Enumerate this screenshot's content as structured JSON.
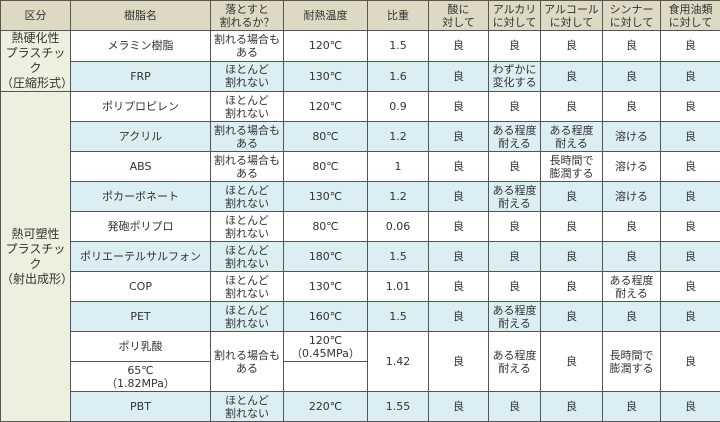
{
  "headers": [
    "区分",
    "樹脂名",
    "落とすと\n割れるか？",
    "耐熱温度",
    "比重",
    "酸に\n対して",
    "アルカリ\nに対して",
    "アルコール\nに対して",
    "シンナー\nに対して",
    "食用油類\nに対して"
  ],
  "categories": [
    "熱硬化性\nプラスチック\n（圧縮形式）",
    "熱可塑性\nプラスチック\n（射出成形）"
  ],
  "rows": [
    {
      "name": "メラミン樹脂",
      "drop": "割れる場合も\nある",
      "heat": "120℃",
      "sg": "1.5",
      "acid": "良",
      "alkali": "良",
      "alcohol": "良",
      "thinner": "良",
      "oil": "良"
    },
    {
      "name": "FRP",
      "drop": "ほとんど\n割れない",
      "heat": "130℃",
      "sg": "1.6",
      "acid": "良",
      "alkali": "わずかに\n変化する",
      "alcohol": "良",
      "thinner": "良",
      "oil": "良"
    },
    {
      "name": "ポリプロピレン",
      "drop": "ほとんど\n割れない",
      "heat": "120℃",
      "sg": "0.9",
      "acid": "良",
      "alkali": "良",
      "alcohol": "良",
      "thinner": "良",
      "oil": "良"
    },
    {
      "name": "アクリル",
      "drop": "割れる場合も\nある",
      "heat": "80℃",
      "sg": "1.2",
      "acid": "良",
      "alkali": "ある程度\n耐える",
      "alcohol": "ある程度\n耐える",
      "thinner": "溶ける",
      "oil": "良"
    },
    {
      "name": "ABS",
      "drop": "割れる場合も\nある",
      "heat": "80℃",
      "sg": "1",
      "acid": "良",
      "alkali": "良",
      "alcohol": "長時間で\n膨潤する",
      "thinner": "溶ける",
      "oil": "良"
    },
    {
      "name": "ポカーボネート",
      "drop": "ほとんど\n割れない",
      "heat": "130℃",
      "sg": "1.2",
      "acid": "良",
      "alkali": "ある程度\n耐える",
      "alcohol": "良",
      "thinner": "溶ける",
      "oil": "良"
    },
    {
      "name": "発砲ポリプロ",
      "drop": "ほとんど\n割れない",
      "heat": "80℃",
      "sg": "0.06",
      "acid": "良",
      "alkali": "良",
      "alcohol": "良",
      "thinner": "良",
      "oil": "良"
    },
    {
      "name": "ポリエーテルサルフォン",
      "drop": "ほとんど\n割れない",
      "heat": "180℃",
      "sg": "1.5",
      "acid": "良",
      "alkali": "良",
      "alcohol": "良",
      "thinner": "良",
      "oil": "良"
    },
    {
      "name": "COP",
      "drop": "ほとんど\n割れない",
      "heat": "130℃",
      "sg": "1.01",
      "acid": "良",
      "alkali": "良",
      "alcohol": "良",
      "thinner": "ある程度\n耐える",
      "oil": "良"
    },
    {
      "name": "PET",
      "drop": "ほとんど\n割れない",
      "heat": "160℃",
      "sg": "1.5",
      "acid": "良",
      "alkali": "ある程度\n耐える",
      "alcohol": "良",
      "thinner": "良",
      "oil": "良"
    },
    {
      "name": "ポリ乳酸",
      "drop": "割れる場合も\nある",
      "heat": "120℃\n（0.45MPa）",
      "heat2": "65℃\n（1.82MPa）",
      "sg": "1.42",
      "acid": "良",
      "alkali": "ある程度\n耐える",
      "alcohol": "良",
      "thinner": "長時間で\n膨潤する",
      "oil": "良"
    },
    {
      "name": "PBT",
      "drop": "ほとんど\n割れない",
      "heat": "220℃",
      "sg": "1.55",
      "acid": "良",
      "alkali": "良",
      "alcohol": "良",
      "thinner": "良",
      "oil": "良"
    }
  ],
  "colors": {
    "header": "#ddd9c3",
    "category": "#ebf1de",
    "stripe": "#daeef3"
  }
}
